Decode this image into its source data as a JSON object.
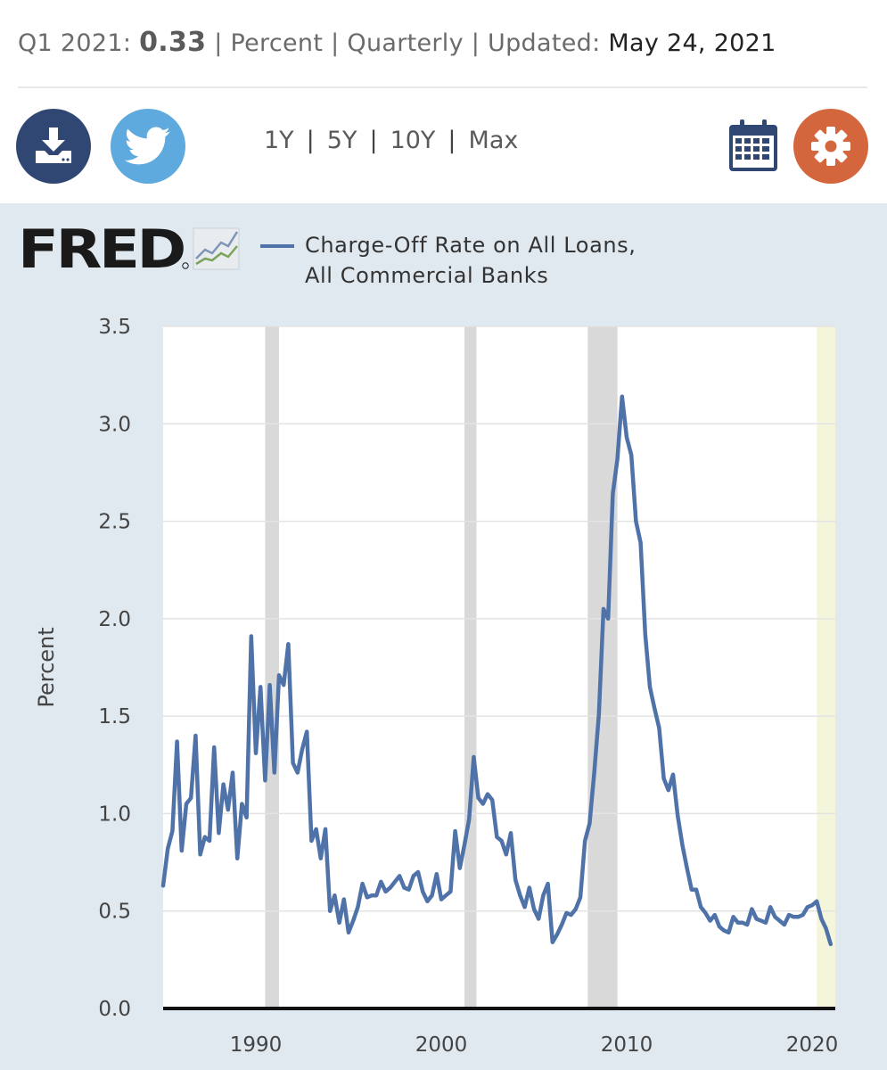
{
  "info": {
    "period": "Q1 2021:",
    "value": "0.33",
    "units": "| Percent",
    "frequency": "| Quarterly",
    "updated_label": "| Updated:",
    "updated_date": "May 24, 2021"
  },
  "toolbar": {
    "ranges": [
      "1Y",
      "5Y",
      "10Y",
      "Max"
    ],
    "download_icon": "download-icon",
    "twitter_icon": "twitter-icon",
    "calendar_icon": "calendar-icon",
    "settings_icon": "gear-icon"
  },
  "brand": {
    "logo": "FRED"
  },
  "colors": {
    "series": "#4f72a9",
    "recession": "#d9d9d9",
    "forecast": "#f5f5dc",
    "panel": "#e1e9f0"
  },
  "chart_data": {
    "type": "line",
    "title": "",
    "xlabel": "",
    "ylabel": "Percent",
    "ylim": [
      0,
      3.5
    ],
    "xlim": [
      1985.0,
      2021.25
    ],
    "yticks": [
      "0.0",
      "0.5",
      "1.0",
      "1.5",
      "2.0",
      "2.5",
      "3.0",
      "3.5"
    ],
    "xticks": [
      "1990",
      "2000",
      "2010",
      "2020"
    ],
    "grid": true,
    "recessions": [
      [
        1990.5,
        1991.25
      ],
      [
        2001.25,
        2001.9
      ],
      [
        2007.9,
        2009.5
      ]
    ],
    "highlight": [
      [
        2020.25,
        2021.25
      ]
    ],
    "series": [
      {
        "name": "Charge-Off Rate on All Loans, All Commercial Banks",
        "x": [
          1985.0,
          1985.25,
          1985.5,
          1985.75,
          1986.0,
          1986.25,
          1986.5,
          1986.75,
          1987.0,
          1987.25,
          1987.5,
          1987.75,
          1988.0,
          1988.25,
          1988.5,
          1988.75,
          1989.0,
          1989.25,
          1989.5,
          1989.75,
          1990.0,
          1990.25,
          1990.5,
          1990.75,
          1991.0,
          1991.25,
          1991.5,
          1991.75,
          1992.0,
          1992.25,
          1992.5,
          1992.75,
          1993.0,
          1993.25,
          1993.5,
          1993.75,
          1994.0,
          1994.25,
          1994.5,
          1994.75,
          1995.0,
          1995.25,
          1995.5,
          1995.75,
          1996.0,
          1996.25,
          1996.5,
          1996.75,
          1997.0,
          1997.25,
          1997.5,
          1997.75,
          1998.0,
          1998.25,
          1998.5,
          1998.75,
          1999.0,
          1999.25,
          1999.5,
          1999.75,
          2000.0,
          2000.25,
          2000.5,
          2000.75,
          2001.0,
          2001.25,
          2001.5,
          2001.75,
          2002.0,
          2002.25,
          2002.5,
          2002.75,
          2003.0,
          2003.25,
          2003.5,
          2003.75,
          2004.0,
          2004.25,
          2004.5,
          2004.75,
          2005.0,
          2005.25,
          2005.5,
          2005.75,
          2006.0,
          2006.25,
          2006.5,
          2006.75,
          2007.0,
          2007.25,
          2007.5,
          2007.75,
          2008.0,
          2008.25,
          2008.5,
          2008.75,
          2009.0,
          2009.25,
          2009.5,
          2009.75,
          2010.0,
          2010.25,
          2010.5,
          2010.75,
          2011.0,
          2011.25,
          2011.5,
          2011.75,
          2012.0,
          2012.25,
          2012.5,
          2012.75,
          2013.0,
          2013.25,
          2013.5,
          2013.75,
          2014.0,
          2014.25,
          2014.5,
          2014.75,
          2015.0,
          2015.25,
          2015.5,
          2015.75,
          2016.0,
          2016.25,
          2016.5,
          2016.75,
          2017.0,
          2017.25,
          2017.5,
          2017.75,
          2018.0,
          2018.25,
          2018.5,
          2018.75,
          2019.0,
          2019.25,
          2019.5,
          2019.75,
          2020.0,
          2020.25,
          2020.5,
          2020.75,
          2021.0
        ],
        "y": [
          0.63,
          0.82,
          0.91,
          1.37,
          0.81,
          1.05,
          1.08,
          1.4,
          0.79,
          0.88,
          0.86,
          1.34,
          0.9,
          1.15,
          1.02,
          1.21,
          0.77,
          1.05,
          0.98,
          1.91,
          1.31,
          1.65,
          1.17,
          1.66,
          1.21,
          1.71,
          1.66,
          1.87,
          1.26,
          1.21,
          1.33,
          1.42,
          0.86,
          0.92,
          0.77,
          0.92,
          0.5,
          0.58,
          0.44,
          0.56,
          0.39,
          0.45,
          0.52,
          0.64,
          0.57,
          0.58,
          0.58,
          0.65,
          0.6,
          0.62,
          0.65,
          0.68,
          0.62,
          0.61,
          0.68,
          0.7,
          0.6,
          0.55,
          0.58,
          0.69,
          0.56,
          0.58,
          0.6,
          0.91,
          0.72,
          0.84,
          0.97,
          1.29,
          1.08,
          1.05,
          1.1,
          1.07,
          0.88,
          0.86,
          0.79,
          0.9,
          0.66,
          0.58,
          0.52,
          0.62,
          0.51,
          0.46,
          0.58,
          0.64,
          0.34,
          0.38,
          0.43,
          0.49,
          0.48,
          0.51,
          0.57,
          0.86,
          0.95,
          1.21,
          1.51,
          2.05,
          2.0,
          2.64,
          2.82,
          3.14,
          2.93,
          2.84,
          2.5,
          2.39,
          1.92,
          1.65,
          1.54,
          1.44,
          1.18,
          1.12,
          1.2,
          0.99,
          0.84,
          0.72,
          0.61,
          0.61,
          0.52,
          0.49,
          0.45,
          0.48,
          0.42,
          0.4,
          0.39,
          0.47,
          0.44,
          0.44,
          0.43,
          0.51,
          0.46,
          0.45,
          0.44,
          0.52,
          0.47,
          0.45,
          0.43,
          0.48,
          0.47,
          0.47,
          0.48,
          0.52,
          0.53,
          0.55,
          0.46,
          0.41,
          0.33
        ]
      }
    ]
  }
}
